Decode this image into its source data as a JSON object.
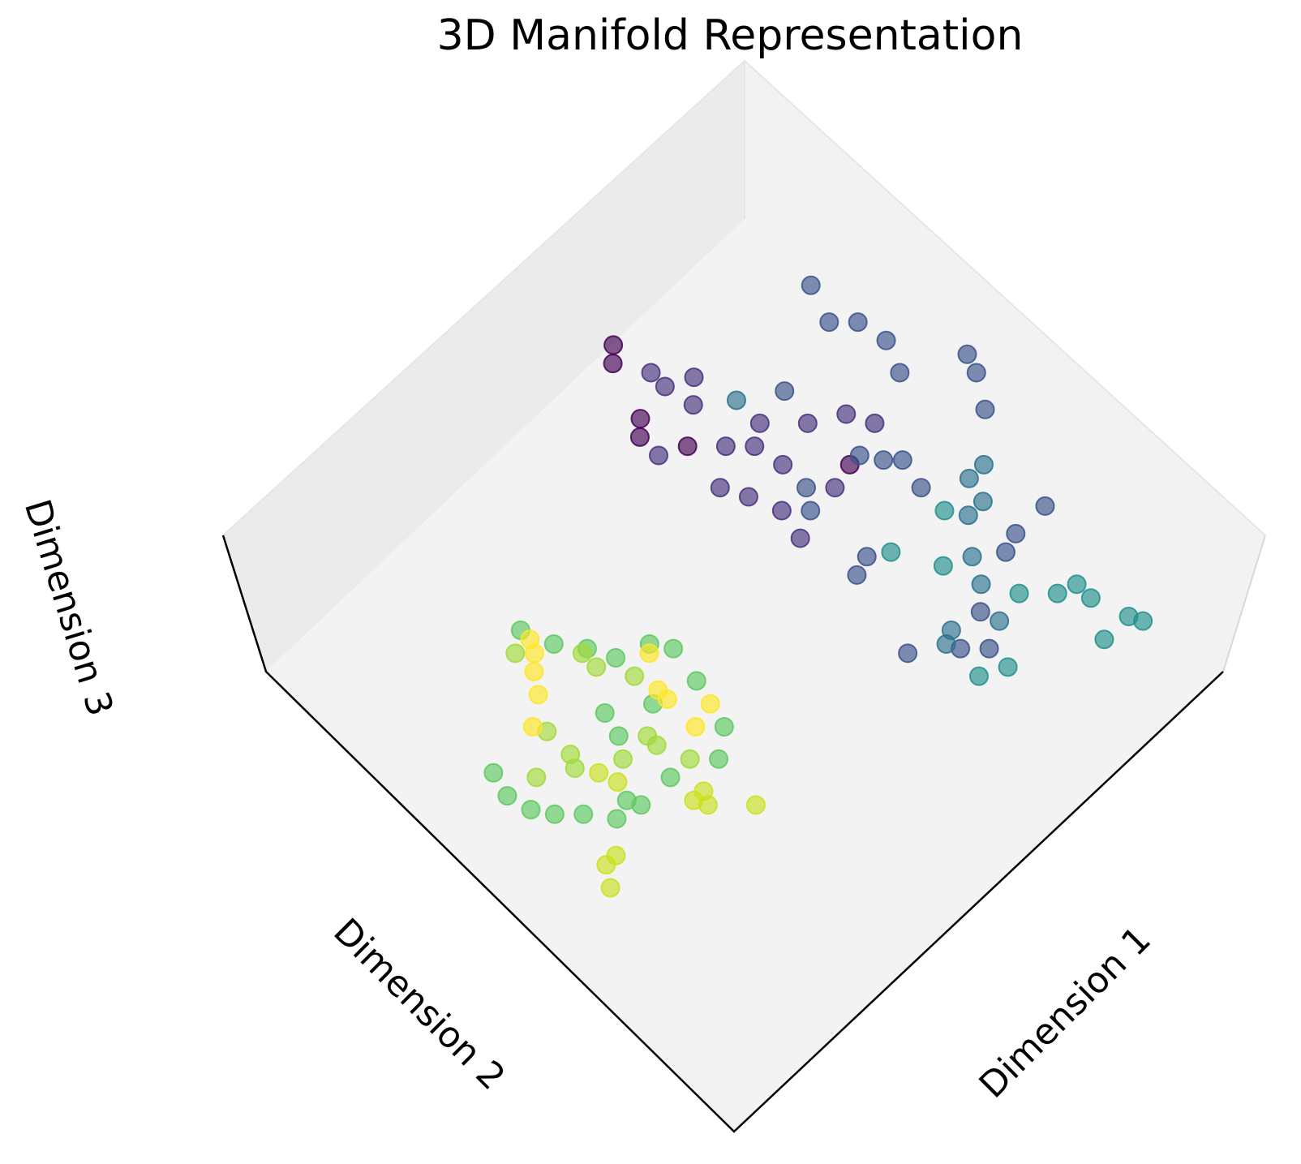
{
  "chart_data": {
    "type": "scatter3d",
    "title": "3D Manifold Representation",
    "xlabel": "Dimension 1",
    "ylabel": "Dimension 2",
    "zlabel": "Dimension 3",
    "xlim": [
      0,
      10
    ],
    "ylim": [
      0,
      10
    ],
    "series": [
      {
        "color": "#440154",
        "x": [
          7.1,
          6.9,
          6.6,
          6.4,
          6.8,
          8.3
        ],
        "y": [
          10.0,
          9.8,
          8.9,
          8.7,
          8.1,
          6.2
        ]
      },
      {
        "color": "#46327e",
        "x": [
          7.2,
          7.2,
          7.6,
          7.3,
          7.2,
          7.5,
          7.6,
          8.3,
          8.8,
          6.4,
          6.7,
          6.9,
          7.1,
          7.0,
          7.8,
          7.9,
          9.0
        ],
        "y": [
          9.3,
          9.0,
          8.8,
          8.5,
          7.7,
          7.4,
          6.9,
          7.1,
          6.8,
          8.3,
          7.3,
          6.9,
          6.4,
          5.9,
          7.6,
          6.1,
          6.4
        ]
      },
      {
        "color": "#3b528b",
        "x": [
          9.8,
          9.6,
          9.9,
          10.0,
          9.8,
          10.7,
          10.6,
          10.3,
          8.4,
          8.7,
          8.9,
          7.6,
          7.4,
          7.5,
          7.2,
          8.8,
          9.3,
          9.9,
          9.0,
          8.1,
          7.5,
          7.8,
          6.9,
          8.5
        ],
        "y": [
          8.6,
          8.0,
          7.7,
          7.2,
          6.7,
          6.2,
          5.9,
          5.4,
          7.7,
          5.9,
          5.7,
          6.4,
          6.1,
          5.0,
          4.9,
          5.2,
          3.7,
          3.7,
          3.6,
          3.2,
          3.0,
          2.7,
          3.5,
          6.2
        ]
      },
      {
        "color": "#2c728e",
        "x": [
          7.8,
          9.4,
          9.7,
          9.3,
          9.0,
          8.6,
          8.4,
          7.6,
          8.2,
          7.4
        ],
        "y": [
          8.1,
          4.8,
          4.8,
          4.4,
          4.4,
          3.9,
          3.5,
          3.3,
          2.9,
          3.2
        ]
      },
      {
        "color": "#21918c",
        "x": [
          9.6,
          9.7,
          9.1,
          9.4,
          9.4,
          8.7,
          9.1,
          7.8,
          7.4,
          8.2,
          7.8,
          8.8
        ],
        "y": [
          1.6,
          1.4,
          1.6,
          2.5,
          2.2,
          3.0,
          2.6,
          2.3,
          2.5,
          4.1,
          4.8,
          4.7
        ]
      },
      {
        "color": "#5ec962",
        "x": [
          3.1,
          3.3,
          3.6,
          3.8,
          4.3,
          4.5,
          4.4,
          4.2,
          3.8,
          3.1,
          2.5,
          2.1,
          1.8,
          1.5,
          1.3,
          1.2,
          1.3,
          2.4,
          3.7,
          3.1,
          3.0
        ],
        "y": [
          7.8,
          7.3,
          6.9,
          6.5,
          6.3,
          6.0,
          5.4,
          4.6,
          4.3,
          4.6,
          4.6,
          4.7,
          5.1,
          5.4,
          5.7,
          6.1,
          6.5,
          4.8,
          5.6,
          6.0,
          5.6
        ]
      },
      {
        "color": "#a0da39",
        "x": [
          2.8,
          3.5,
          3.5,
          2.3,
          2.2,
          3.3,
          3.3,
          2.8,
          3.5,
          3.8,
          1.7,
          2.3
        ],
        "y": [
          7.6,
          6.9,
          6.6,
          5.9,
          5.7,
          5.3,
          5.1,
          5.3,
          4.6,
          6.1,
          6.0,
          6.4
        ]
      },
      {
        "color": "#cae11f",
        "x": [
          2.4,
          2.5,
          3.3,
          3.2,
          3.1,
          1.5,
          1.3,
          1.7,
          3.7
        ],
        "y": [
          5.4,
          5.1,
          4.1,
          3.9,
          4.1,
          4.3,
          4.0,
          4.3,
          3.4
        ]
      },
      {
        "color": "#fde725",
        "x": [
          3.1,
          3.0,
          2.8,
          2.6,
          4.2,
          3.9,
          3.9,
          4.3,
          2.2,
          3.9
        ],
        "y": [
          7.6,
          7.4,
          7.2,
          6.9,
          6.2,
          5.7,
          5.5,
          5.0,
          6.6,
          4.9
        ]
      }
    ]
  }
}
